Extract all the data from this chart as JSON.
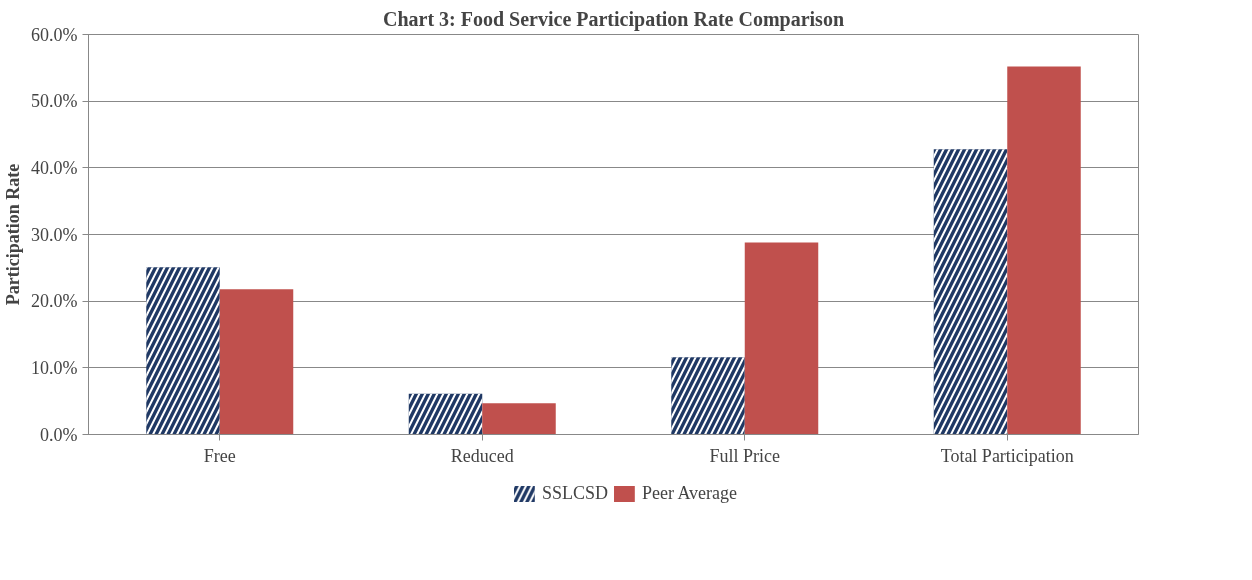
{
  "chart_data": {
    "type": "bar",
    "title": "Chart 3: Food Service Participation Rate Comparison",
    "ylabel": "Participation Rate",
    "categories": [
      "Free",
      "Reduced",
      "Full Price",
      "Total Participation"
    ],
    "series": [
      {
        "name": "SSLCSD",
        "color": "#1f3864",
        "values": [
          25.1,
          6.1,
          11.6,
          42.8
        ]
      },
      {
        "name": "Peer Average",
        "color": "#c0504d",
        "values": [
          21.8,
          4.7,
          28.8,
          55.2
        ]
      }
    ],
    "ylim": [
      0,
      60
    ],
    "yticks": [
      {
        "value": 0,
        "label": "0.0%"
      },
      {
        "value": 10,
        "label": "10.0%"
      },
      {
        "value": 20,
        "label": "20.0%"
      },
      {
        "value": 30,
        "label": "30.0%"
      },
      {
        "value": 40,
        "label": "40.0%"
      },
      {
        "value": 50,
        "label": "50.0%"
      },
      {
        "value": 60,
        "label": "60.0%"
      }
    ],
    "grid": "y",
    "legend": "bottom"
  }
}
